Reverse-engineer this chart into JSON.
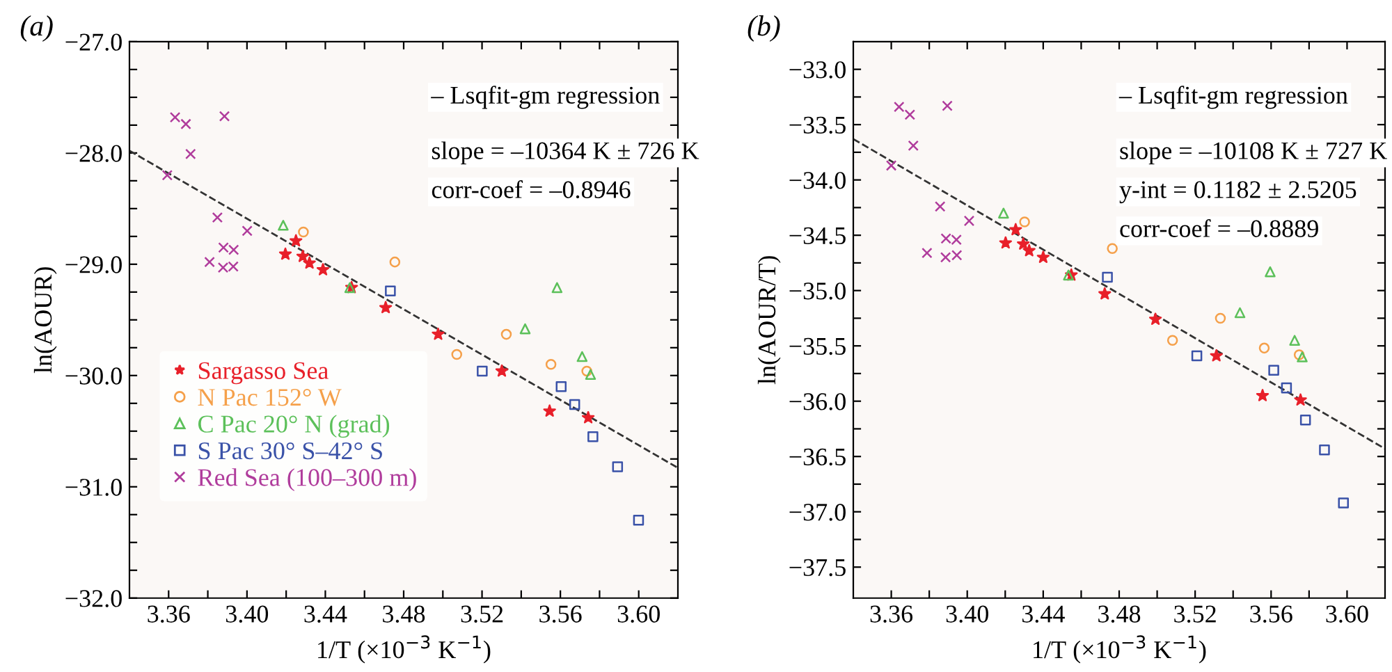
{
  "chart_data": [
    {
      "type": "scatter",
      "title": "(a)",
      "xlabel": "1/T (×10$^{−3}$ K$^{−1}$)",
      "ylabel": "ln(AOUR)",
      "xlim": [
        3.34,
        3.62
      ],
      "ylim": [
        -32,
        -27
      ],
      "xticks": [
        {
          "value": 3.36,
          "label": "3.36"
        },
        {
          "value": 3.38,
          "label": null
        },
        {
          "value": 3.4,
          "label": "3.40"
        },
        {
          "value": 3.42,
          "label": null
        },
        {
          "value": 3.44,
          "label": "3.44"
        },
        {
          "value": 3.46,
          "label": null
        },
        {
          "value": 3.48,
          "label": "3.48"
        },
        {
          "value": 3.5,
          "label": null
        },
        {
          "value": 3.52,
          "label": "3.52"
        },
        {
          "value": 3.54,
          "label": null
        },
        {
          "value": 3.56,
          "label": "3.56"
        },
        {
          "value": 3.58,
          "label": null
        },
        {
          "value": 3.6,
          "label": "3.60"
        }
      ],
      "yticks": [
        {
          "value": -32,
          "label": "−32.0"
        },
        {
          "value": -31.75,
          "label": null
        },
        {
          "value": -31.5,
          "label": null
        },
        {
          "value": -31.25,
          "label": null
        },
        {
          "value": -31,
          "label": "−31.0"
        },
        {
          "value": -30.75,
          "label": null
        },
        {
          "value": -30.5,
          "label": null
        },
        {
          "value": -30.25,
          "label": null
        },
        {
          "value": -30,
          "label": "−30.0"
        },
        {
          "value": -29.75,
          "label": null
        },
        {
          "value": -29.5,
          "label": null
        },
        {
          "value": -29.25,
          "label": null
        },
        {
          "value": -29,
          "label": "−29.0"
        },
        {
          "value": -28.75,
          "label": null
        },
        {
          "value": -28.5,
          "label": null
        },
        {
          "value": -28.25,
          "label": null
        },
        {
          "value": -28,
          "label": "−28.0"
        },
        {
          "value": -27.75,
          "label": null
        },
        {
          "value": -27.5,
          "label": null
        },
        {
          "value": -27.25,
          "label": null
        },
        {
          "value": -27,
          "label": "−27.0"
        }
      ],
      "grid": false,
      "legend": "bottom left",
      "annotations": [
        "– Lsqfit-gm regression",
        "slope = –10364 K ± 726 K",
        "corr-coef = –0.8946"
      ],
      "series": [
        {
          "name": "Sargasso Sea",
          "color": "#e8202a",
          "marker": "star",
          "x": [
            3.425,
            3.4196,
            3.4285,
            3.4319,
            3.4388,
            3.4534,
            3.4708,
            3.4976,
            3.5301,
            3.5545,
            3.5742
          ],
          "values": [
            -28.79,
            -28.91,
            -28.93,
            -28.99,
            -29.05,
            -29.21,
            -29.39,
            -29.63,
            -29.96,
            -30.32,
            -30.38
          ]
        },
        {
          "name": "N Pac 152° W",
          "color": "#f5a04a",
          "marker": "circle",
          "x": [
            3.4288,
            3.4755,
            3.5071,
            3.5324,
            3.5552,
            3.5735
          ],
          "values": [
            -28.71,
            -28.98,
            -29.81,
            -29.63,
            -29.9,
            -29.96
          ]
        },
        {
          "name": "C Pac 20° N (grad)",
          "color": "#5cc05a",
          "marker": "triangle",
          "x": [
            3.4185,
            3.4525,
            3.542,
            3.5583,
            3.5711,
            3.5754
          ],
          "values": [
            -28.65,
            -29.21,
            -29.58,
            -29.21,
            -29.83,
            -29.99
          ]
        },
        {
          "name": "S Pac 30° S–42° S",
          "color": "#3a52a8",
          "marker": "square",
          "x": [
            3.4732,
            3.5201,
            3.5604,
            3.5673,
            3.5766,
            3.5892,
            3.5999
          ],
          "values": [
            -29.24,
            -29.96,
            -30.1,
            -30.26,
            -30.55,
            -30.82,
            -31.3
          ]
        },
        {
          "name": "Red Sea (100–300 m)",
          "color": "#b03c9c",
          "marker": "cross",
          "x": [
            3.3633,
            3.3688,
            3.3885,
            3.3712,
            3.3593,
            3.3849,
            3.4001,
            3.388,
            3.3932,
            3.3809,
            3.3878,
            3.393
          ],
          "values": [
            -27.68,
            -27.74,
            -27.67,
            -28.01,
            -28.2,
            -28.58,
            -28.7,
            -28.85,
            -28.87,
            -28.98,
            -29.03,
            -29.02
          ]
        },
        {
          "type": "line",
          "color": "#333333",
          "line_style": "dashed",
          "marker": "none",
          "x": [
            3.34,
            3.62
          ],
          "values": [
            -27.98,
            -30.83
          ]
        }
      ]
    },
    {
      "type": "scatter",
      "title": "(b)",
      "xlabel": "1/T (×10$^{−3}$ K$^{−1}$)",
      "ylabel": "ln(AOUR/T)",
      "xlim": [
        3.34,
        3.62
      ],
      "ylim": [
        -37.78,
        -32.75
      ],
      "xticks": [
        {
          "value": 3.36,
          "label": "3.36"
        },
        {
          "value": 3.38,
          "label": null
        },
        {
          "value": 3.4,
          "label": "3.40"
        },
        {
          "value": 3.42,
          "label": null
        },
        {
          "value": 3.44,
          "label": "3.44"
        },
        {
          "value": 3.46,
          "label": null
        },
        {
          "value": 3.48,
          "label": "3.48"
        },
        {
          "value": 3.5,
          "label": null
        },
        {
          "value": 3.52,
          "label": "3.52"
        },
        {
          "value": 3.54,
          "label": null
        },
        {
          "value": 3.56,
          "label": "3.56"
        },
        {
          "value": 3.58,
          "label": null
        },
        {
          "value": 3.6,
          "label": "3.60"
        }
      ],
      "yticks": [
        {
          "value": -37.5,
          "label": "−37.5"
        },
        {
          "value": -37.25,
          "label": null
        },
        {
          "value": -37,
          "label": "−37.0"
        },
        {
          "value": -36.75,
          "label": null
        },
        {
          "value": -36.5,
          "label": "−36.5"
        },
        {
          "value": -36.25,
          "label": null
        },
        {
          "value": -36,
          "label": "−36.0"
        },
        {
          "value": -35.75,
          "label": null
        },
        {
          "value": -35.5,
          "label": "−35.5"
        },
        {
          "value": -35.25,
          "label": null
        },
        {
          "value": -35,
          "label": "−35.0"
        },
        {
          "value": -34.75,
          "label": null
        },
        {
          "value": -34.5,
          "label": "−34.5"
        },
        {
          "value": -34.25,
          "label": null
        },
        {
          "value": -34,
          "label": "−34.0"
        },
        {
          "value": -33.75,
          "label": null
        },
        {
          "value": -33.5,
          "label": "−33.5"
        },
        {
          "value": -33.25,
          "label": null
        },
        {
          "value": -33,
          "label": "−33.0"
        }
      ],
      "grid": false,
      "annotations": [
        "– Lsqfit-gm regression",
        "slope = –10108 K ± 727 K",
        "y-int = 0.1182 ± 2.5205",
        "corr-coef = –0.8889"
      ],
      "series": [
        {
          "color": "#e8202a",
          "marker": "star",
          "x": [
            3.4255,
            3.4202,
            3.4295,
            3.4326,
            3.44,
            3.4548,
            3.4724,
            3.4991,
            3.5312,
            3.5555,
            3.5755
          ],
          "values": [
            -34.45,
            -34.57,
            -34.58,
            -34.64,
            -34.7,
            -34.86,
            -35.03,
            -35.26,
            -35.59,
            -35.95,
            -35.99
          ]
        },
        {
          "color": "#f5a04a",
          "marker": "circle",
          "x": [
            3.4302,
            3.4764,
            3.5081,
            3.5333,
            3.5564,
            3.5748
          ],
          "values": [
            -34.38,
            -34.62,
            -35.45,
            -35.25,
            -35.52,
            -35.58
          ]
        },
        {
          "color": "#5cc05a",
          "marker": "triangle",
          "x": [
            3.4191,
            3.4533,
            3.5436,
            3.5595,
            3.5724,
            3.5764
          ],
          "values": [
            -34.3,
            -34.86,
            -35.2,
            -34.83,
            -35.45,
            -35.6
          ]
        },
        {
          "color": "#3a52a8",
          "marker": "square",
          "x": [
            3.4738,
            3.5209,
            3.5614,
            3.5681,
            3.5781,
            3.5881,
            3.5981
          ],
          "values": [
            -34.88,
            -35.59,
            -35.72,
            -35.88,
            -36.17,
            -36.44,
            -36.92
          ]
        },
        {
          "color": "#b03c9c",
          "marker": "cross",
          "x": [
            3.3641,
            3.3698,
            3.3895,
            3.3716,
            3.36,
            3.3857,
            3.401,
            3.3888,
            3.3943,
            3.3788,
            3.3886,
            3.3945
          ],
          "values": [
            -33.34,
            -33.41,
            -33.33,
            -33.69,
            -33.87,
            -34.24,
            -34.37,
            -34.53,
            -34.54,
            -34.66,
            -34.7,
            -34.68
          ]
        },
        {
          "type": "line",
          "color": "#333333",
          "line_style": "dashed",
          "marker": "none",
          "x": [
            3.34,
            3.62
          ],
          "values": [
            -33.63,
            -36.43
          ]
        }
      ]
    }
  ]
}
